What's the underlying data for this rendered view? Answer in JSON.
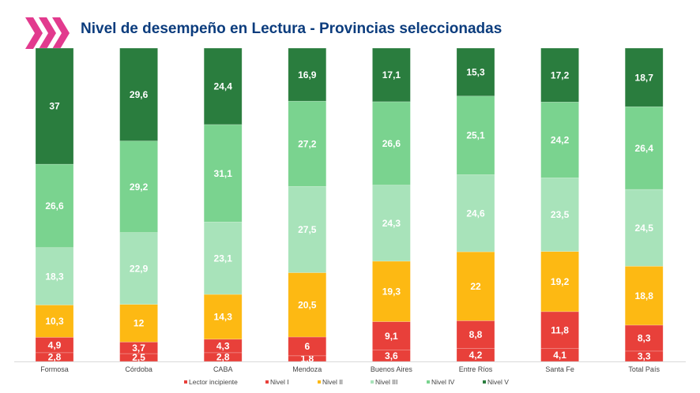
{
  "title": "Nivel de desempeño en Lectura  - Provincias seleccionadas",
  "chart_data": {
    "type": "bar",
    "stacked": true,
    "title": "Nivel de desempeño en Lectura  - Provincias seleccionadas",
    "categories": [
      "Formosa",
      "Córdoba",
      "CABA",
      "Mendoza",
      "Buenos Aires",
      "Entre Ríos",
      "Santa Fe",
      "Total País"
    ],
    "series": [
      {
        "name": "Lector incipiente",
        "color": "#E8403A",
        "values": [
          2.8,
          2.5,
          2.8,
          1.8,
          3.6,
          4.2,
          4.1,
          3.3
        ]
      },
      {
        "name": "Nivel I",
        "color": "#E8403A",
        "values": [
          4.9,
          3.7,
          4.3,
          6,
          9.1,
          8.8,
          11.8,
          8.3
        ]
      },
      {
        "name": "Nivel II",
        "color": "#FDB913",
        "values": [
          10.3,
          12,
          14.3,
          20.5,
          19.3,
          22,
          19.2,
          18.8
        ]
      },
      {
        "name": "Nivel III",
        "color": "#A8E3BA",
        "values": [
          18.3,
          22.9,
          23.1,
          27.5,
          24.3,
          24.6,
          23.5,
          24.5
        ]
      },
      {
        "name": "Nivel IV",
        "color": "#7AD38F",
        "values": [
          26.6,
          29.2,
          31.1,
          27.2,
          26.6,
          25.1,
          24.2,
          26.4
        ]
      },
      {
        "name": "Nivel V",
        "color": "#2A7D3E",
        "values": [
          37,
          29.6,
          24.4,
          16.9,
          17.1,
          15.3,
          17.2,
          18.7
        ]
      }
    ],
    "ylim": [
      0,
      100
    ],
    "legend": "bottom",
    "grid": false
  }
}
